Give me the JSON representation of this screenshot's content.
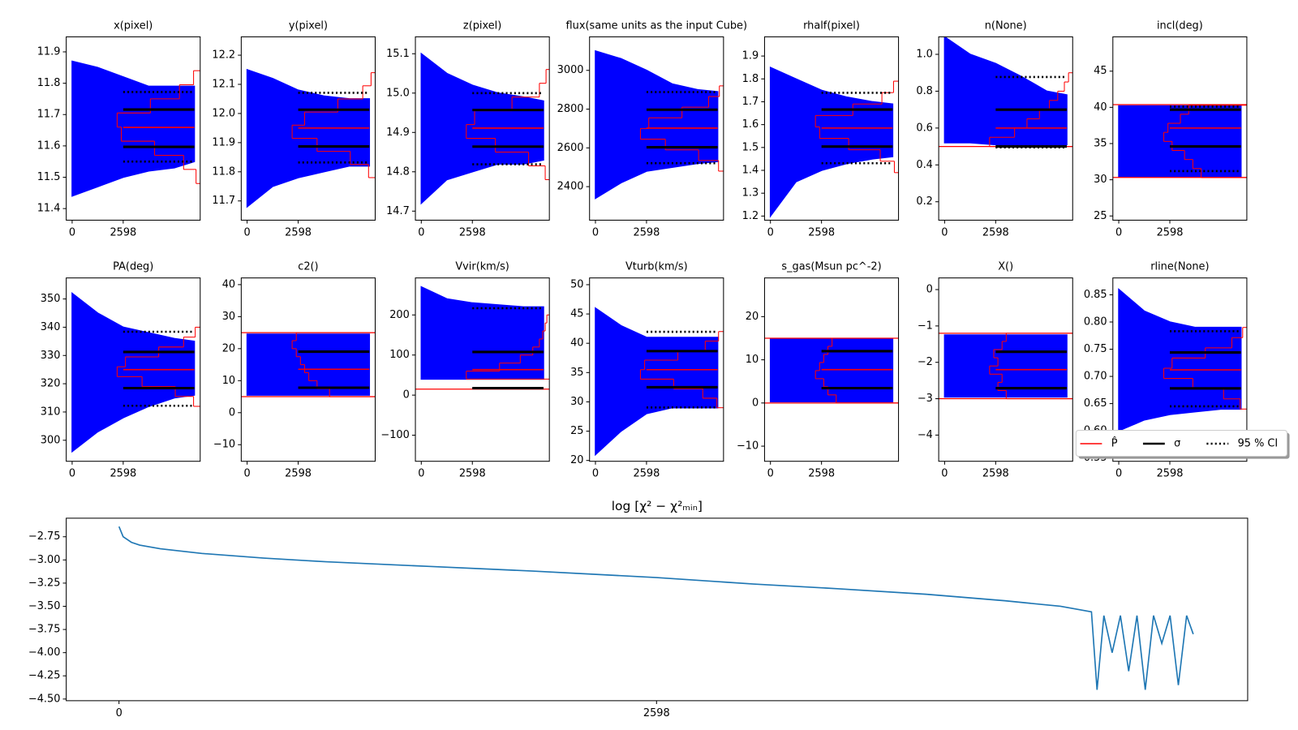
{
  "trace_color": "#0000ff",
  "legend": {
    "entries": [
      {
        "name": "P̂",
        "color": "#ff0000",
        "dash": "solid"
      },
      {
        "name": "σ",
        "color": "#000000",
        "dash": "solid"
      },
      {
        "name": "95 % CI",
        "color": "#000000",
        "dash": "dotted"
      }
    ]
  },
  "chart_data": [
    {
      "type": "trace",
      "title": "x(pixel)",
      "xlim": [
        -300,
        6516
      ],
      "xticks": [
        0,
        2598
      ],
      "ylim": [
        11.363,
        11.948
      ],
      "yticks": [
        11.4,
        11.5,
        11.6,
        11.7,
        11.8,
        11.9
      ],
      "x": [
        0,
        1300,
        2600,
        3900,
        5200,
        6218
      ],
      "upper": [
        11.87,
        11.85,
        11.82,
        11.79,
        11.79,
        11.79
      ],
      "lower": [
        11.44,
        11.47,
        11.5,
        11.52,
        11.53,
        11.55
      ],
      "stat_x": [
        2598,
        6218
      ],
      "mean": 11.659,
      "sigma": [
        11.597,
        11.716
      ],
      "ci": [
        11.55,
        11.772
      ],
      "hist_bins": [
        11.48,
        11.525,
        11.57,
        11.615,
        11.66,
        11.705,
        11.75,
        11.795,
        11.84
      ],
      "hist_counts": [
        5,
        20,
        55,
        95,
        100,
        60,
        25,
        8
      ]
    },
    {
      "type": "trace",
      "title": "y(pixel)",
      "xlim": [
        -300,
        6516
      ],
      "xticks": [
        0,
        2598
      ],
      "ylim": [
        11.634,
        12.263
      ],
      "yticks": [
        11.7,
        11.8,
        11.9,
        {
          "value": 12,
          "label": "12.0"
        },
        12.1,
        12.2
      ],
      "x": [
        0,
        1300,
        2600,
        3900,
        5200,
        6218
      ],
      "upper": [
        12.15,
        12.12,
        12.08,
        12.06,
        12.05,
        12.05
      ],
      "lower": [
        11.68,
        11.75,
        11.78,
        11.8,
        11.82,
        11.82
      ],
      "stat_x": [
        2598,
        6218
      ],
      "mean": 11.95,
      "sigma": [
        11.887,
        12.013
      ],
      "ci": [
        11.832,
        12.071
      ],
      "hist_bins": [
        11.78,
        11.825,
        11.87,
        11.915,
        11.96,
        12.005,
        12.05,
        12.095,
        12.14
      ],
      "hist_counts": [
        8,
        30,
        70,
        100,
        85,
        45,
        15,
        5
      ]
    },
    {
      "type": "trace",
      "title": "z(pixel)",
      "xlim": [
        -300,
        6516
      ],
      "xticks": [
        0,
        2598
      ],
      "ylim": [
        14.677,
        15.143
      ],
      "yticks": [
        14.7,
        14.8,
        14.9,
        {
          "value": 15,
          "label": "15.0"
        },
        15.1
      ],
      "x": [
        0,
        1300,
        2600,
        3900,
        5200,
        6218
      ],
      "upper": [
        15.1,
        15.05,
        15.02,
        15.0,
        14.99,
        14.98
      ],
      "lower": [
        14.72,
        14.78,
        14.8,
        14.82,
        14.82,
        14.83
      ],
      "stat_x": [
        2598,
        6218
      ],
      "mean": 14.911,
      "sigma": [
        14.864,
        14.957
      ],
      "ci": [
        14.819,
        15.0
      ],
      "hist_bins": [
        14.78,
        14.815,
        14.85,
        14.885,
        14.92,
        14.955,
        14.99,
        15.025,
        15.06
      ],
      "hist_counts": [
        5,
        25,
        65,
        100,
        90,
        45,
        12,
        4
      ]
    },
    {
      "type": "trace",
      "title": "flux(same units as the input Cube)",
      "xlim": [
        -300,
        6516
      ],
      "xticks": [
        0,
        2598
      ],
      "ylim": [
        2227,
        3173
      ],
      "yticks": [
        2400,
        2600,
        2800,
        3000
      ],
      "x": [
        0,
        1300,
        2600,
        3900,
        5200,
        6218
      ],
      "upper": [
        3100,
        3060,
        3000,
        2930,
        2900,
        2890
      ],
      "lower": [
        2340,
        2420,
        2480,
        2500,
        2520,
        2530
      ],
      "stat_x": [
        2598,
        6218
      ],
      "mean": 2702,
      "sigma": [
        2603,
        2797
      ],
      "ci": [
        2521,
        2888
      ],
      "hist_bins": [
        2480,
        2535,
        2590,
        2645,
        2700,
        2755,
        2810,
        2865,
        2920
      ],
      "hist_counts": [
        6,
        30,
        70,
        100,
        90,
        50,
        18,
        5
      ]
    },
    {
      "type": "trace",
      "title": "rhalf(pixel)",
      "xlim": [
        -300,
        6516
      ],
      "xticks": [
        0,
        2598
      ],
      "ylim": [
        1.182,
        1.984
      ],
      "yticks": [
        1.2,
        1.3,
        1.4,
        1.5,
        1.6,
        1.7,
        1.8,
        1.9
      ],
      "x": [
        0,
        1300,
        2600,
        3900,
        5200,
        6218
      ],
      "upper": [
        1.85,
        1.8,
        1.75,
        1.72,
        1.7,
        1.69
      ],
      "lower": [
        1.2,
        1.35,
        1.4,
        1.43,
        1.45,
        1.46
      ],
      "stat_x": [
        2598,
        6218
      ],
      "mean": 1.585,
      "sigma": [
        1.504,
        1.666
      ],
      "ci": [
        1.431,
        1.739
      ],
      "hist_bins": [
        1.39,
        1.44,
        1.49,
        1.54,
        1.59,
        1.64,
        1.69,
        1.74,
        1.79
      ],
      "hist_counts": [
        5,
        22,
        60,
        95,
        100,
        55,
        20,
        6
      ]
    },
    {
      "type": "trace",
      "title": "n(None)",
      "xlim": [
        -300,
        6516
      ],
      "xticks": [
        0,
        2598
      ],
      "ylim": [
        0.1,
        1.095
      ],
      "yticks": [
        0.2,
        0.4,
        0.6,
        0.8,
        {
          "value": 1,
          "label": "1.0"
        }
      ],
      "x": [
        0,
        1300,
        2600,
        3900,
        5200,
        6218
      ],
      "upper": [
        1.095,
        1.0,
        0.95,
        0.88,
        0.8,
        0.78
      ],
      "lower": [
        0.52,
        0.52,
        0.51,
        0.51,
        0.51,
        0.51
      ],
      "stat_x": [
        2598,
        6218
      ],
      "mean": 0.6,
      "sigma": [
        0.5,
        0.7
      ],
      "ci": [
        0.495,
        0.877
      ],
      "bounds": [
        0.5
      ],
      "hist_bins": [
        0.5,
        0.55,
        0.6,
        0.65,
        0.7,
        0.75,
        0.8,
        0.85,
        0.9
      ],
      "hist_counts": [
        100,
        70,
        55,
        40,
        28,
        18,
        10,
        5
      ]
    },
    {
      "type": "trace",
      "title": "incl(deg)",
      "xlim": [
        -300,
        6516
      ],
      "xticks": [
        0,
        2598
      ],
      "ylim": [
        24.42,
        49.74
      ],
      "yticks": [
        25,
        30,
        35,
        40,
        45
      ],
      "x": [
        0,
        1300,
        2600,
        3900,
        5200,
        6218
      ],
      "upper": [
        40.2,
        40.2,
        40.2,
        40.2,
        40.2,
        40.2
      ],
      "lower": [
        30.4,
        30.4,
        30.4,
        30.4,
        30.4,
        30.4
      ],
      "stat_x": [
        2598,
        6218
      ],
      "mean": 37.14,
      "sigma": [
        34.6,
        39.68
      ],
      "ci": [
        31.2,
        40.1
      ],
      "bounds": [
        30.32,
        40.38
      ],
      "hist_bins": [
        30.3,
        31.55,
        32.8,
        34.05,
        35.3,
        36.55,
        37.8,
        39.05,
        40.3
      ],
      "hist_counts": [
        55,
        65,
        75,
        90,
        100,
        95,
        80,
        70
      ]
    },
    {
      "type": "trace",
      "title": "PA(deg)",
      "xlim": [
        -300,
        6516
      ],
      "xticks": [
        0,
        2598
      ],
      "ylim": [
        292.56,
        357.44
      ],
      "yticks": [
        300,
        310,
        320,
        330,
        340,
        350
      ],
      "x": [
        0,
        1300,
        2600,
        3900,
        5200,
        6218
      ],
      "upper": [
        352,
        345,
        340,
        338,
        336,
        335
      ],
      "lower": [
        296,
        303,
        308,
        312,
        315,
        316
      ],
      "stat_x": [
        2598,
        6218
      ],
      "mean": 325,
      "sigma": [
        318.45,
        331.25
      ],
      "ci": [
        312.2,
        338.4
      ],
      "hist_bins": [
        312,
        315.5,
        319,
        322.5,
        326,
        329.5,
        333,
        336.5,
        340
      ],
      "hist_counts": [
        8,
        30,
        70,
        100,
        90,
        50,
        20,
        6
      ]
    },
    {
      "type": "trace",
      "title": "c2()",
      "xlim": [
        -300,
        6516
      ],
      "xticks": [
        0,
        2598
      ],
      "ylim": [
        -15.18,
        42.09
      ],
      "yticks": [
        {
          "value": -10,
          "label": "−10"
        },
        0,
        10,
        20,
        30,
        40
      ],
      "x": [
        0,
        1300,
        2600,
        3900,
        5200,
        6218
      ],
      "upper": [
        24.5,
        24.5,
        24.5,
        24.5,
        24.5,
        24.5
      ],
      "lower": [
        5.5,
        5.5,
        5.5,
        5.5,
        5.5,
        5.5
      ],
      "stat_x": [
        2598,
        6218
      ],
      "mean": 13.56,
      "sigma": [
        7.8,
        19.06
      ],
      "bounds": [
        5,
        25
      ],
      "hist_bins": [
        5,
        7.5,
        10,
        12.5,
        15,
        17.5,
        20,
        22.5,
        25
      ],
      "hist_counts": [
        55,
        70,
        80,
        85,
        90,
        95,
        100,
        95
      ]
    },
    {
      "type": "trace",
      "title": "Vvir(km/s)",
      "xlim": [
        -300,
        6516
      ],
      "xticks": [
        0,
        2598
      ],
      "ylim": [
        -165,
        292.3
      ],
      "yticks": [
        {
          "value": -100,
          "label": "−100"
        },
        0,
        100,
        200
      ],
      "x": [
        0,
        1300,
        2600,
        3900,
        5200,
        6218
      ],
      "upper": [
        270,
        240,
        230,
        225,
        220,
        220
      ],
      "lower": [
        40,
        40,
        40,
        40,
        40,
        40
      ],
      "stat_x": [
        2598,
        6218
      ],
      "mean": 63.6,
      "sigma": [
        17.5,
        107.7
      ],
      "ci": [
        17.5,
        216.8
      ],
      "bounds": [
        15
      ],
      "hist_bins": [
        40,
        60,
        80,
        100,
        120,
        140,
        160,
        180,
        200
      ],
      "hist_counts": [
        100,
        60,
        35,
        20,
        12,
        8,
        5,
        3
      ]
    },
    {
      "type": "trace",
      "title": "Vturb(km/s)",
      "xlim": [
        -300,
        6516
      ],
      "xticks": [
        0,
        2598
      ],
      "ylim": [
        19.86,
        51.15
      ],
      "yticks": [
        20,
        25,
        30,
        35,
        40,
        45,
        50
      ],
      "x": [
        0,
        1300,
        2600,
        3900,
        5200,
        6218
      ],
      "upper": [
        46,
        43,
        41,
        41,
        41,
        41
      ],
      "lower": [
        21,
        25,
        28,
        29,
        29,
        29
      ],
      "stat_x": [
        2598,
        6218
      ],
      "mean": 35.5,
      "sigma": [
        32.49,
        38.66
      ],
      "ci": [
        29.04,
        41.96
      ],
      "hist_bins": [
        29,
        30.625,
        32.25,
        33.875,
        35.5,
        37.125,
        38.75,
        40.375,
        42
      ],
      "hist_counts": [
        8,
        25,
        60,
        100,
        95,
        55,
        22,
        6
      ]
    },
    {
      "type": "trace",
      "title": "s_gas(Msun pc^-2)",
      "xlim": [
        -300,
        6516
      ],
      "xticks": [
        0,
        2598
      ],
      "ylim": [
        -13.5,
        28.96
      ],
      "yticks": [
        {
          "value": -10,
          "label": "−10"
        },
        0,
        10,
        20
      ],
      "x": [
        0,
        1300,
        2600,
        3900,
        5200,
        6218
      ],
      "upper": [
        14.8,
        14.8,
        14.8,
        14.8,
        14.8,
        14.8
      ],
      "lower": [
        0.3,
        0.3,
        0.3,
        0.3,
        0.3,
        0.3
      ],
      "stat_x": [
        2598,
        6218
      ],
      "mean": 7.73,
      "sigma": [
        3.44,
        12
      ],
      "bounds": [
        0,
        15
      ],
      "hist_bins": [
        0,
        1.875,
        3.75,
        5.625,
        7.5,
        9.375,
        11.25,
        13.125,
        15
      ],
      "hist_counts": [
        75,
        85,
        90,
        100,
        95,
        90,
        85,
        80
      ]
    },
    {
      "type": "trace",
      "title": "X()",
      "xlim": [
        -300,
        6516
      ],
      "xticks": [
        0,
        2598
      ],
      "ylim": [
        -4.72,
        0.32
      ],
      "yticks": [
        {
          "value": -4,
          "label": "−4"
        },
        {
          "value": -3,
          "label": "−3"
        },
        {
          "value": -2,
          "label": "−2"
        },
        {
          "value": -1,
          "label": "−1"
        },
        0
      ],
      "x": [
        0,
        1300,
        2600,
        3900,
        5200,
        6218
      ],
      "upper": [
        -1.25,
        -1.25,
        -1.25,
        -1.25,
        -1.25,
        -1.25
      ],
      "lower": [
        -2.95,
        -2.95,
        -2.95,
        -2.95,
        -2.95,
        -2.95
      ],
      "stat_x": [
        2598,
        6218
      ],
      "mean": -2.2,
      "sigma": [
        -2.71,
        -1.71
      ],
      "bounds": [
        -3,
        -1.2
      ],
      "hist_bins": [
        -3,
        -2.775,
        -2.55,
        -2.325,
        -2.1,
        -1.875,
        -1.65,
        -1.425,
        -1.2
      ],
      "hist_counts": [
        80,
        90,
        85,
        100,
        90,
        95,
        85,
        80
      ]
    },
    {
      "type": "trace",
      "title": "rline(None)",
      "xlim": [
        -300,
        6516
      ],
      "xticks": [
        0,
        2598
      ],
      "ylim": [
        0.544,
        0.881
      ],
      "yticks": [
        0.55,
        {
          "value": 0.6,
          "label": "0.60"
        },
        0.65,
        {
          "value": 0.7,
          "label": "0.70"
        },
        0.75,
        {
          "value": 0.8,
          "label": "0.80"
        },
        0.85
      ],
      "x": [
        0,
        1300,
        2600,
        3900,
        5200,
        6218
      ],
      "upper": [
        0.86,
        0.82,
        0.8,
        0.79,
        0.79,
        0.79
      ],
      "lower": [
        0.6,
        0.62,
        0.63,
        0.635,
        0.64,
        0.64
      ],
      "stat_x": [
        2598,
        6218
      ],
      "mean": 0.712,
      "sigma": [
        0.678,
        0.744
      ],
      "ci": [
        0.645,
        0.783
      ],
      "hist_bins": [
        0.64,
        0.65875,
        0.6775,
        0.69625,
        0.715,
        0.73375,
        0.7525,
        0.77125,
        0.79
      ],
      "hist_counts": [
        8,
        28,
        65,
        100,
        90,
        50,
        18,
        5
      ]
    },
    {
      "type": "line",
      "title": "log [χ² − χ²ₘᵢₙ]",
      "xlim": [
        -255,
        5455
      ],
      "xticks": [
        0,
        2598
      ],
      "ylim": [
        -4.518,
        -2.55
      ],
      "yticks": [
        {
          "value": -4.5,
          "label": "−4.50"
        },
        {
          "value": -4.25,
          "label": "−4.25"
        },
        {
          "value": -4,
          "label": "−4.00"
        },
        {
          "value": -3.75,
          "label": "−3.75"
        },
        {
          "value": -3.5,
          "label": "−3.50"
        },
        {
          "value": -3.25,
          "label": "−3.25"
        },
        {
          "value": -3,
          "label": "−3.00"
        },
        {
          "value": -2.75,
          "label": "−2.75"
        }
      ],
      "color": "#1f77b4",
      "x": [
        0,
        20,
        60,
        100,
        200,
        400,
        700,
        1000,
        1500,
        2000,
        2598,
        3068,
        3472,
        3900,
        4281,
        4550,
        4700,
        4727,
        4760,
        4800,
        4840,
        4880,
        4920,
        4960,
        5000,
        5040,
        5080,
        5120,
        5160,
        5192
      ],
      "values": [
        -2.64,
        -2.75,
        -2.81,
        -2.84,
        -2.88,
        -2.93,
        -2.98,
        -3.02,
        -3.07,
        -3.12,
        -3.19,
        -3.26,
        -3.31,
        -3.37,
        -3.44,
        -3.5,
        -3.56,
        -4.4,
        -3.6,
        -4.0,
        -3.6,
        -4.2,
        -3.6,
        -4.4,
        -3.6,
        -3.9,
        -3.6,
        -4.35,
        -3.6,
        -3.8
      ]
    }
  ]
}
